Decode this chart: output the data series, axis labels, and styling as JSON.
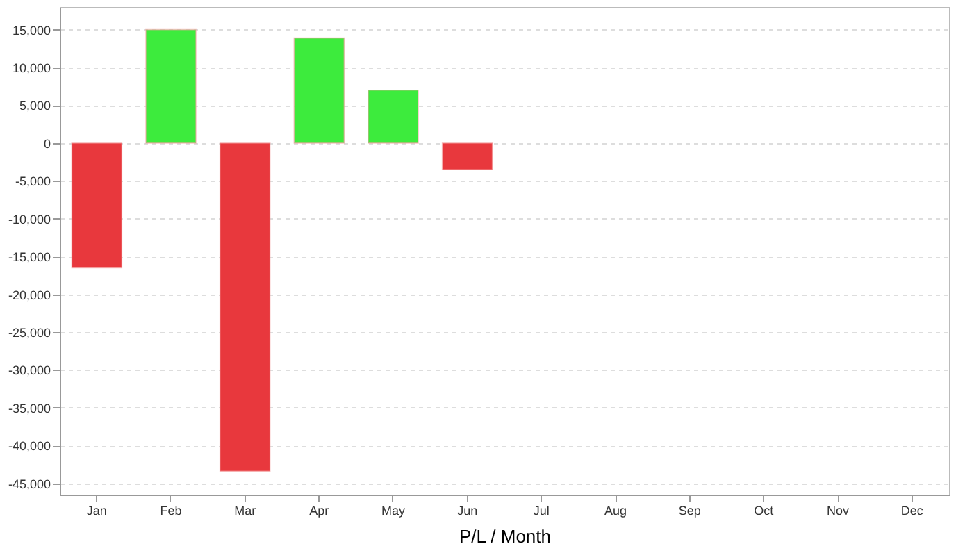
{
  "chart_data": {
    "type": "bar",
    "xlabel": "P/L / Month",
    "categories": [
      "Jan",
      "Feb",
      "Mar",
      "Apr",
      "May",
      "Jun",
      "Jul",
      "Aug",
      "Sep",
      "Oct",
      "Nov",
      "Dec"
    ],
    "values": [
      -16500,
      15000,
      -43400,
      13900,
      7000,
      -3500,
      null,
      null,
      null,
      null,
      null,
      null
    ],
    "colors": [
      "#e8383d",
      "#3deb3d",
      "#e8383d",
      "#3deb3d",
      "#3deb3d",
      "#e8383d",
      null,
      null,
      null,
      null,
      null,
      null
    ],
    "ylim": [
      -46500,
      18000
    ],
    "yticks": [
      {
        "value": -45000,
        "label": "-45,000"
      },
      {
        "value": -40000,
        "label": "-40,000"
      },
      {
        "value": -35000,
        "label": "-35,000"
      },
      {
        "value": -30000,
        "label": "-30,000"
      },
      {
        "value": -25000,
        "label": "-25,000"
      },
      {
        "value": -20000,
        "label": "-20,000"
      },
      {
        "value": -15000,
        "label": "-15,000"
      },
      {
        "value": -10000,
        "label": "-10,000"
      },
      {
        "value": -5000,
        "label": "-5,000"
      },
      0,
      {
        "value": 5000,
        "label": "5,000"
      },
      {
        "value": 10000,
        "label": "10,000"
      },
      {
        "value": 15000,
        "label": "15,000"
      }
    ],
    "grid": "y",
    "legend": false
  }
}
